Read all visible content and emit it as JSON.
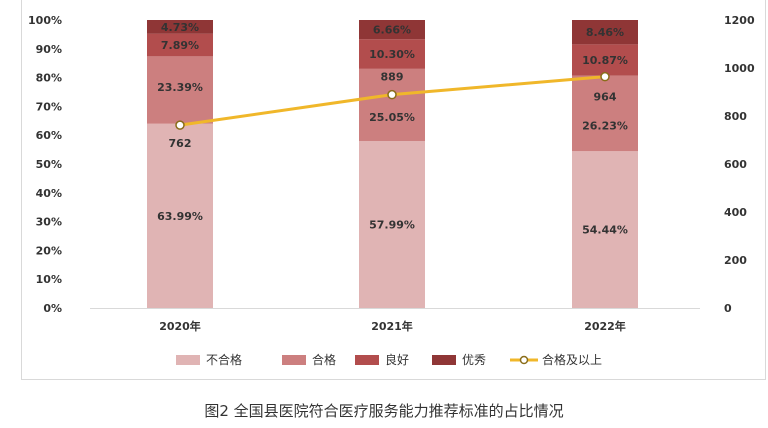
{
  "caption": "图2 全国县医院符合医疗服务能力推荐标准的占比情况",
  "chart_data": {
    "type": "bar",
    "stacked": true,
    "categories": [
      "2020年",
      "2021年",
      "2022年"
    ],
    "series": [
      {
        "name": "不合格",
        "values": [
          63.99,
          57.99,
          54.44
        ],
        "labels": [
          "63.99%",
          "57.99%",
          "54.44%"
        ],
        "color": "#e0b4b4"
      },
      {
        "name": "合格",
        "values": [
          23.39,
          25.05,
          26.23
        ],
        "labels": [
          "23.39%",
          "25.05%",
          "26.23%"
        ],
        "color": "#cc7f7f"
      },
      {
        "name": "良好",
        "values": [
          7.89,
          10.3,
          10.87
        ],
        "labels": [
          "7.89%",
          "10.30%",
          "10.87%"
        ],
        "color": "#b24d4d"
      },
      {
        "name": "优秀",
        "values": [
          4.73,
          6.66,
          8.46
        ],
        "labels": [
          "4.73%",
          "6.66%",
          "8.46%"
        ],
        "color": "#8f3636"
      }
    ],
    "line": {
      "name": "合格及以上",
      "values": [
        762,
        889,
        964
      ],
      "labels": [
        "762",
        "889",
        "964"
      ],
      "color": "#f0b72a",
      "axis": "right"
    },
    "left_axis": {
      "ticks": [
        "0%",
        "10%",
        "20%",
        "30%",
        "40%",
        "50%",
        "60%",
        "70%",
        "80%",
        "90%",
        "100%"
      ],
      "ylim": [
        0,
        100
      ]
    },
    "right_axis": {
      "ticks": [
        "0",
        "200",
        "400",
        "600",
        "800",
        "1000",
        "1200"
      ],
      "ylim": [
        0,
        1200
      ]
    },
    "legend_position": "bottom"
  }
}
